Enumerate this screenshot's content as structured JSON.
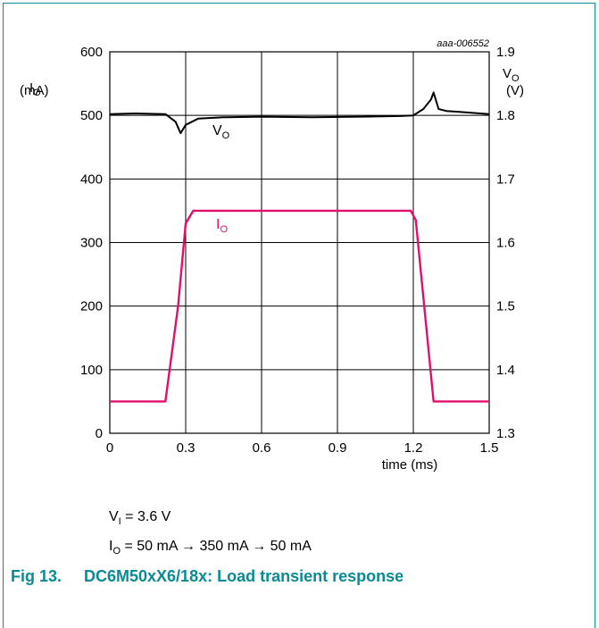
{
  "chart_data": {
    "type": "line",
    "figure_id": "aaa-006552",
    "x_axis": {
      "label": "time (ms)",
      "lim": [
        0,
        1.5
      ],
      "ticks": [
        0,
        0.3,
        0.6,
        0.9,
        1.2,
        1.5
      ],
      "tick_labels": [
        "0",
        "0.3",
        "0.6",
        "0.9",
        "1.2",
        "1.5"
      ]
    },
    "y_left": {
      "label": "I",
      "label_sub": "O",
      "unit": "(mA)",
      "lim": [
        0,
        600
      ],
      "ticks": [
        0,
        100,
        200,
        300,
        400,
        500,
        600
      ],
      "tick_labels": [
        "0",
        "100",
        "200",
        "300",
        "400",
        "500",
        "600"
      ]
    },
    "y_right": {
      "label": "V",
      "label_sub": "O",
      "unit": "(V)",
      "lim": [
        1.3,
        1.9
      ],
      "ticks": [
        1.3,
        1.4,
        1.5,
        1.6,
        1.7,
        1.8,
        1.9
      ],
      "tick_labels": [
        "1.3",
        "1.4",
        "1.5",
        "1.6",
        "1.7",
        "1.8",
        "1.9"
      ]
    },
    "grid": true,
    "series": [
      {
        "name": "VO",
        "label_main": "V",
        "label_sub": "O",
        "axis": "right",
        "color": "#000000",
        "points": [
          [
            0,
            1.802
          ],
          [
            0.1,
            1.803
          ],
          [
            0.22,
            1.802
          ],
          [
            0.26,
            1.79
          ],
          [
            0.28,
            1.772
          ],
          [
            0.3,
            1.785
          ],
          [
            0.35,
            1.795
          ],
          [
            0.45,
            1.797
          ],
          [
            0.6,
            1.798
          ],
          [
            0.8,
            1.797
          ],
          [
            1.0,
            1.798
          ],
          [
            1.15,
            1.799
          ],
          [
            1.2,
            1.8
          ],
          [
            1.24,
            1.81
          ],
          [
            1.27,
            1.825
          ],
          [
            1.28,
            1.836
          ],
          [
            1.3,
            1.81
          ],
          [
            1.33,
            1.807
          ],
          [
            1.4,
            1.805
          ],
          [
            1.5,
            1.802
          ]
        ]
      },
      {
        "name": "IO",
        "label_main": "I",
        "label_sub": "O",
        "axis": "left",
        "color": "#e0106a",
        "points": [
          [
            0,
            50
          ],
          [
            0.22,
            50
          ],
          [
            0.27,
            200
          ],
          [
            0.3,
            330
          ],
          [
            0.33,
            350
          ],
          [
            1.19,
            350
          ],
          [
            1.21,
            335
          ],
          [
            1.28,
            50
          ],
          [
            1.5,
            50
          ]
        ]
      }
    ]
  },
  "conditions": {
    "line1_main": "V",
    "line1_sub": "I",
    "line1_rest": " = 3.6 V",
    "line2_main": "I",
    "line2_sub": "O",
    "line2_rest": " = 50 mA → 350 mA → 50 mA"
  },
  "caption": {
    "label": "Fig 13.",
    "title": "DC6M50xX6/18x: Load transient response"
  }
}
